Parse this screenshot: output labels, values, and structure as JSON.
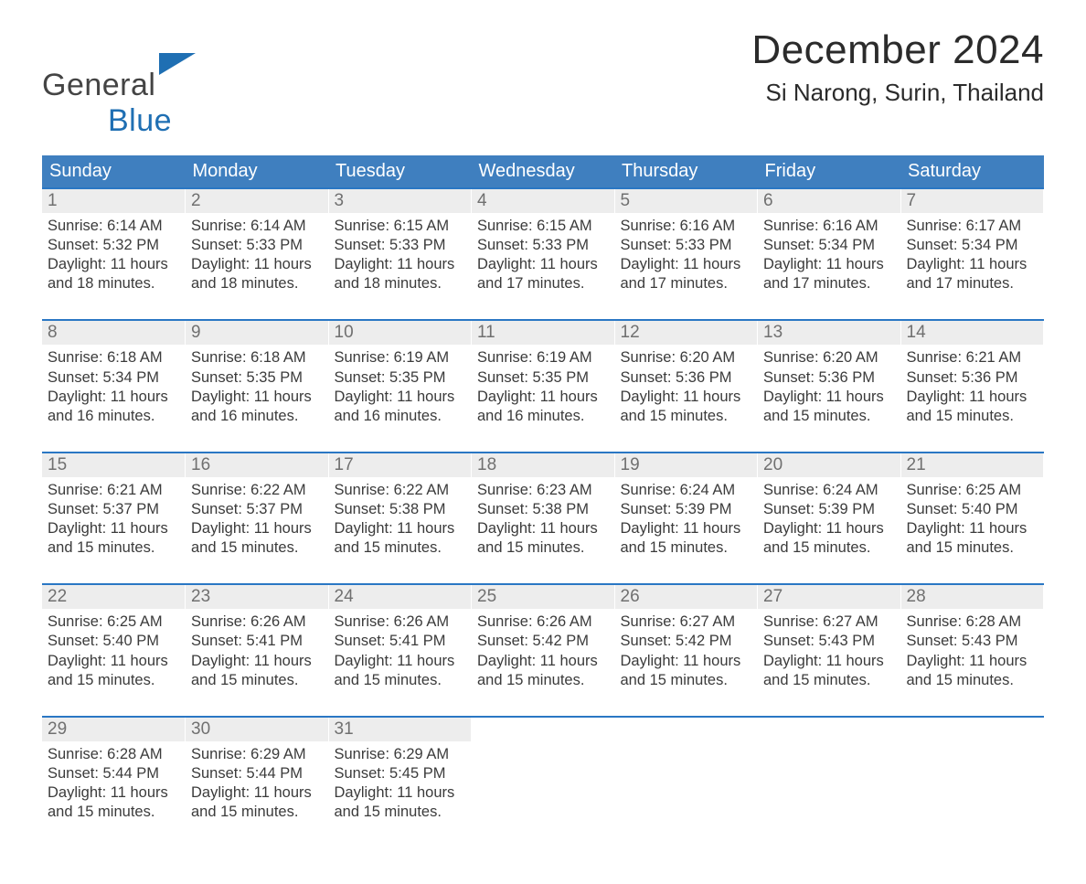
{
  "logo": {
    "word1": "General",
    "word2": "Blue"
  },
  "title": "December 2024",
  "location": "Si Narong, Surin, Thailand",
  "colors": {
    "header_blue": "#3f7fbf",
    "accent_blue": "#2a77c4",
    "logo_blue": "#1f6fb3",
    "logo_text": "#444444",
    "day_bg": "#ededed",
    "day_text": "#707070",
    "body_text": "#3b3b3b",
    "background": "#ffffff"
  },
  "weekdays": [
    "Sunday",
    "Monday",
    "Tuesday",
    "Wednesday",
    "Thursday",
    "Friday",
    "Saturday"
  ],
  "weeks": [
    [
      {
        "day": "1",
        "sunrise": "Sunrise: 6:14 AM",
        "sunset": "Sunset: 5:32 PM",
        "d1": "Daylight: 11 hours",
        "d2": "and 18 minutes."
      },
      {
        "day": "2",
        "sunrise": "Sunrise: 6:14 AM",
        "sunset": "Sunset: 5:33 PM",
        "d1": "Daylight: 11 hours",
        "d2": "and 18 minutes."
      },
      {
        "day": "3",
        "sunrise": "Sunrise: 6:15 AM",
        "sunset": "Sunset: 5:33 PM",
        "d1": "Daylight: 11 hours",
        "d2": "and 18 minutes."
      },
      {
        "day": "4",
        "sunrise": "Sunrise: 6:15 AM",
        "sunset": "Sunset: 5:33 PM",
        "d1": "Daylight: 11 hours",
        "d2": "and 17 minutes."
      },
      {
        "day": "5",
        "sunrise": "Sunrise: 6:16 AM",
        "sunset": "Sunset: 5:33 PM",
        "d1": "Daylight: 11 hours",
        "d2": "and 17 minutes."
      },
      {
        "day": "6",
        "sunrise": "Sunrise: 6:16 AM",
        "sunset": "Sunset: 5:34 PM",
        "d1": "Daylight: 11 hours",
        "d2": "and 17 minutes."
      },
      {
        "day": "7",
        "sunrise": "Sunrise: 6:17 AM",
        "sunset": "Sunset: 5:34 PM",
        "d1": "Daylight: 11 hours",
        "d2": "and 17 minutes."
      }
    ],
    [
      {
        "day": "8",
        "sunrise": "Sunrise: 6:18 AM",
        "sunset": "Sunset: 5:34 PM",
        "d1": "Daylight: 11 hours",
        "d2": "and 16 minutes."
      },
      {
        "day": "9",
        "sunrise": "Sunrise: 6:18 AM",
        "sunset": "Sunset: 5:35 PM",
        "d1": "Daylight: 11 hours",
        "d2": "and 16 minutes."
      },
      {
        "day": "10",
        "sunrise": "Sunrise: 6:19 AM",
        "sunset": "Sunset: 5:35 PM",
        "d1": "Daylight: 11 hours",
        "d2": "and 16 minutes."
      },
      {
        "day": "11",
        "sunrise": "Sunrise: 6:19 AM",
        "sunset": "Sunset: 5:35 PM",
        "d1": "Daylight: 11 hours",
        "d2": "and 16 minutes."
      },
      {
        "day": "12",
        "sunrise": "Sunrise: 6:20 AM",
        "sunset": "Sunset: 5:36 PM",
        "d1": "Daylight: 11 hours",
        "d2": "and 15 minutes."
      },
      {
        "day": "13",
        "sunrise": "Sunrise: 6:20 AM",
        "sunset": "Sunset: 5:36 PM",
        "d1": "Daylight: 11 hours",
        "d2": "and 15 minutes."
      },
      {
        "day": "14",
        "sunrise": "Sunrise: 6:21 AM",
        "sunset": "Sunset: 5:36 PM",
        "d1": "Daylight: 11 hours",
        "d2": "and 15 minutes."
      }
    ],
    [
      {
        "day": "15",
        "sunrise": "Sunrise: 6:21 AM",
        "sunset": "Sunset: 5:37 PM",
        "d1": "Daylight: 11 hours",
        "d2": "and 15 minutes."
      },
      {
        "day": "16",
        "sunrise": "Sunrise: 6:22 AM",
        "sunset": "Sunset: 5:37 PM",
        "d1": "Daylight: 11 hours",
        "d2": "and 15 minutes."
      },
      {
        "day": "17",
        "sunrise": "Sunrise: 6:22 AM",
        "sunset": "Sunset: 5:38 PM",
        "d1": "Daylight: 11 hours",
        "d2": "and 15 minutes."
      },
      {
        "day": "18",
        "sunrise": "Sunrise: 6:23 AM",
        "sunset": "Sunset: 5:38 PM",
        "d1": "Daylight: 11 hours",
        "d2": "and 15 minutes."
      },
      {
        "day": "19",
        "sunrise": "Sunrise: 6:24 AM",
        "sunset": "Sunset: 5:39 PM",
        "d1": "Daylight: 11 hours",
        "d2": "and 15 minutes."
      },
      {
        "day": "20",
        "sunrise": "Sunrise: 6:24 AM",
        "sunset": "Sunset: 5:39 PM",
        "d1": "Daylight: 11 hours",
        "d2": "and 15 minutes."
      },
      {
        "day": "21",
        "sunrise": "Sunrise: 6:25 AM",
        "sunset": "Sunset: 5:40 PM",
        "d1": "Daylight: 11 hours",
        "d2": "and 15 minutes."
      }
    ],
    [
      {
        "day": "22",
        "sunrise": "Sunrise: 6:25 AM",
        "sunset": "Sunset: 5:40 PM",
        "d1": "Daylight: 11 hours",
        "d2": "and 15 minutes."
      },
      {
        "day": "23",
        "sunrise": "Sunrise: 6:26 AM",
        "sunset": "Sunset: 5:41 PM",
        "d1": "Daylight: 11 hours",
        "d2": "and 15 minutes."
      },
      {
        "day": "24",
        "sunrise": "Sunrise: 6:26 AM",
        "sunset": "Sunset: 5:41 PM",
        "d1": "Daylight: 11 hours",
        "d2": "and 15 minutes."
      },
      {
        "day": "25",
        "sunrise": "Sunrise: 6:26 AM",
        "sunset": "Sunset: 5:42 PM",
        "d1": "Daylight: 11 hours",
        "d2": "and 15 minutes."
      },
      {
        "day": "26",
        "sunrise": "Sunrise: 6:27 AM",
        "sunset": "Sunset: 5:42 PM",
        "d1": "Daylight: 11 hours",
        "d2": "and 15 minutes."
      },
      {
        "day": "27",
        "sunrise": "Sunrise: 6:27 AM",
        "sunset": "Sunset: 5:43 PM",
        "d1": "Daylight: 11 hours",
        "d2": "and 15 minutes."
      },
      {
        "day": "28",
        "sunrise": "Sunrise: 6:28 AM",
        "sunset": "Sunset: 5:43 PM",
        "d1": "Daylight: 11 hours",
        "d2": "and 15 minutes."
      }
    ],
    [
      {
        "day": "29",
        "sunrise": "Sunrise: 6:28 AM",
        "sunset": "Sunset: 5:44 PM",
        "d1": "Daylight: 11 hours",
        "d2": "and 15 minutes."
      },
      {
        "day": "30",
        "sunrise": "Sunrise: 6:29 AM",
        "sunset": "Sunset: 5:44 PM",
        "d1": "Daylight: 11 hours",
        "d2": "and 15 minutes."
      },
      {
        "day": "31",
        "sunrise": "Sunrise: 6:29 AM",
        "sunset": "Sunset: 5:45 PM",
        "d1": "Daylight: 11 hours",
        "d2": "and 15 minutes."
      },
      {
        "empty": true
      },
      {
        "empty": true
      },
      {
        "empty": true
      },
      {
        "empty": true
      }
    ]
  ]
}
